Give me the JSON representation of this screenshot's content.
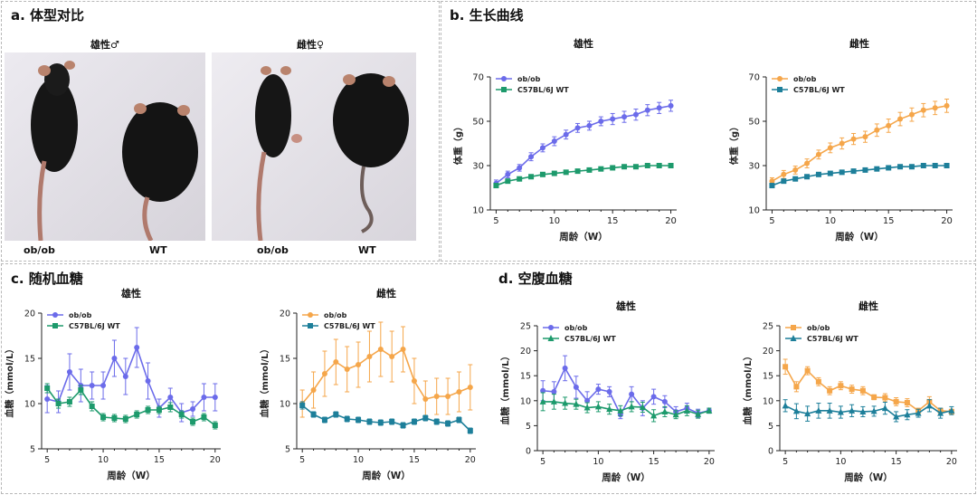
{
  "panels": {
    "a": {
      "title": "a. 体型对比",
      "male_label": "雄性♂",
      "female_label": "雌性♀",
      "photo_left_labels": [
        "ob/ob",
        "WT"
      ],
      "photo_right_labels": [
        "ob/ob",
        "WT"
      ]
    },
    "b": {
      "title": "b. 生长曲线"
    },
    "c": {
      "title": "c. 随机血糖"
    },
    "d": {
      "title": "d. 空腹血糖"
    }
  },
  "colors": {
    "male_obob": "#6b6bea",
    "wt_male": "#1d9a6c",
    "female_obob": "#f5a64a",
    "wt_female": "#1d7f9a"
  },
  "chart_data": [
    {
      "id": "b-male",
      "type": "line",
      "title": "雄性",
      "xlabel": "周龄（W）",
      "ylabel": "体重（g）",
      "xlim": [
        4.5,
        20.5
      ],
      "ylim": [
        10,
        70
      ],
      "xticks": [
        5,
        10,
        15,
        20
      ],
      "yticks": [
        10,
        30,
        50,
        70
      ],
      "legend": "top-left",
      "series": [
        {
          "name": "ob/ob",
          "marker": "circle",
          "color": "#6b6bea",
          "x": [
            5,
            6,
            7,
            8,
            9,
            10,
            11,
            12,
            13,
            14,
            15,
            16,
            17,
            18,
            19,
            20
          ],
          "y": [
            22,
            26,
            29,
            34,
            38,
            41,
            44,
            47,
            48,
            50,
            51,
            52,
            53,
            55,
            56,
            57
          ],
          "err": [
            1.5,
            1.5,
            1.5,
            1.8,
            1.8,
            2,
            2,
            2,
            2,
            2,
            2.5,
            2.5,
            2.5,
            2.5,
            2.5,
            2.5
          ]
        },
        {
          "name": "C57BL/6J WT",
          "marker": "square",
          "color": "#1d9a6c",
          "x": [
            5,
            6,
            7,
            8,
            9,
            10,
            11,
            12,
            13,
            14,
            15,
            16,
            17,
            18,
            19,
            20
          ],
          "y": [
            21,
            23,
            24,
            25,
            26,
            26.5,
            27,
            27.5,
            28,
            28.5,
            29,
            29.5,
            29.5,
            30,
            30,
            30
          ],
          "err": [
            0.8,
            0.8,
            0.8,
            0.8,
            0.8,
            0.8,
            0.8,
            0.8,
            0.8,
            0.8,
            0.8,
            0.8,
            0.8,
            0.8,
            0.8,
            0.8
          ]
        }
      ]
    },
    {
      "id": "b-female",
      "type": "line",
      "title": "雌性",
      "xlabel": "周龄（W）",
      "ylabel": "体重（g）",
      "xlim": [
        4.5,
        20.5
      ],
      "ylim": [
        10,
        70
      ],
      "xticks": [
        5,
        10,
        15,
        20
      ],
      "yticks": [
        10,
        30,
        50,
        70
      ],
      "legend": "top-left",
      "series": [
        {
          "name": "ob/ob",
          "marker": "circle",
          "color": "#f5a64a",
          "x": [
            5,
            6,
            7,
            8,
            9,
            10,
            11,
            12,
            13,
            14,
            15,
            16,
            17,
            18,
            19,
            20
          ],
          "y": [
            23,
            26,
            28,
            31,
            35,
            38,
            40,
            42,
            43,
            46,
            48,
            51,
            53,
            55,
            56,
            57
          ],
          "err": [
            1.5,
            1.8,
            1.8,
            2,
            2,
            2.2,
            2.5,
            2.5,
            2.5,
            2.8,
            3,
            3,
            3,
            3,
            3,
            3
          ]
        },
        {
          "name": "C57BL/6J WT",
          "marker": "square",
          "color": "#1d7f9a",
          "x": [
            5,
            6,
            7,
            8,
            9,
            10,
            11,
            12,
            13,
            14,
            15,
            16,
            17,
            18,
            19,
            20
          ],
          "y": [
            21,
            23,
            24,
            25,
            26,
            26.5,
            27,
            27.5,
            28,
            28.5,
            29,
            29.5,
            29.5,
            30,
            30,
            30
          ],
          "err": [
            0.8,
            0.8,
            0.8,
            0.8,
            0.8,
            0.8,
            0.8,
            0.8,
            0.8,
            0.8,
            0.8,
            0.8,
            0.8,
            0.8,
            0.8,
            0.8
          ]
        }
      ]
    },
    {
      "id": "c-male",
      "type": "line",
      "title": "雄性",
      "xlabel": "周龄（W）",
      "ylabel": "血糖（mmol/L）",
      "xlim": [
        4.5,
        20.5
      ],
      "ylim": [
        5,
        20
      ],
      "xticks": [
        5,
        10,
        15,
        20
      ],
      "yticks": [
        5,
        10,
        15,
        20
      ],
      "legend": "top-left",
      "series": [
        {
          "name": "ob/ob",
          "marker": "circle",
          "color": "#6b6bea",
          "x": [
            5,
            6,
            7,
            8,
            9,
            10,
            11,
            12,
            13,
            14,
            15,
            16,
            17,
            18,
            19,
            20
          ],
          "y": [
            10.5,
            10.2,
            13.5,
            12,
            12,
            12,
            15,
            13,
            16.2,
            12.5,
            9.5,
            10.7,
            9,
            9.4,
            10.7,
            10.7
          ],
          "err": [
            1.5,
            1.2,
            2,
            1.8,
            1.5,
            1.5,
            2,
            2,
            2.2,
            2,
            1,
            1,
            1,
            0.8,
            1.5,
            1.5
          ]
        },
        {
          "name": "C57BL/6J WT",
          "marker": "square",
          "color": "#1d9a6c",
          "x": [
            5,
            6,
            7,
            8,
            9,
            10,
            11,
            12,
            13,
            14,
            15,
            16,
            17,
            18,
            19,
            20
          ],
          "y": [
            11.7,
            10,
            10.2,
            11.5,
            9.7,
            8.5,
            8.4,
            8.3,
            8.8,
            9.3,
            9.3,
            9.6,
            8.8,
            8,
            8.5,
            7.6
          ],
          "err": [
            0.5,
            0.5,
            0.5,
            0.5,
            0.5,
            0.4,
            0.4,
            0.4,
            0.4,
            0.4,
            0.4,
            0.5,
            0.4,
            0.4,
            0.4,
            0.4
          ]
        }
      ]
    },
    {
      "id": "c-female",
      "type": "line",
      "title": "雌性",
      "xlabel": "周龄（W）",
      "ylabel": "血糖（mmol/L）",
      "xlim": [
        4.5,
        20.5
      ],
      "ylim": [
        5,
        20
      ],
      "xticks": [
        5,
        10,
        15,
        20
      ],
      "yticks": [
        5,
        10,
        15,
        20
      ],
      "legend": "top-left",
      "series": [
        {
          "name": "ob/ob",
          "marker": "circle",
          "color": "#f5a64a",
          "x": [
            5,
            6,
            7,
            8,
            9,
            10,
            11,
            12,
            13,
            14,
            15,
            16,
            17,
            18,
            19,
            20
          ],
          "y": [
            10,
            11.5,
            13.3,
            14.6,
            13.8,
            14.3,
            15.2,
            16,
            15.2,
            16,
            12.5,
            10.5,
            10.8,
            10.8,
            11.3,
            11.8
          ],
          "err": [
            1.5,
            2,
            2.5,
            2.5,
            2.5,
            2.5,
            2.8,
            3,
            2.8,
            2.5,
            2.5,
            2,
            2,
            2,
            2.2,
            2.5
          ]
        },
        {
          "name": "C57BL/6J WT",
          "marker": "square",
          "color": "#1d7f9a",
          "x": [
            5,
            6,
            7,
            8,
            9,
            10,
            11,
            12,
            13,
            14,
            15,
            16,
            17,
            18,
            19,
            20
          ],
          "y": [
            9.8,
            8.8,
            8.2,
            8.8,
            8.3,
            8.2,
            8,
            7.9,
            8,
            7.6,
            8,
            8.4,
            8,
            7.8,
            8.2,
            7
          ],
          "err": [
            0.4,
            0.3,
            0.3,
            0.3,
            0.3,
            0.3,
            0.3,
            0.3,
            0.3,
            0.3,
            0.3,
            0.3,
            0.3,
            0.3,
            0.3,
            0.3
          ]
        }
      ]
    },
    {
      "id": "d-male",
      "type": "line",
      "title": "雄性",
      "xlabel": "周龄（W）",
      "ylabel": "血糖（mmol/L）",
      "xlim": [
        4.5,
        20.5
      ],
      "ylim": [
        0,
        25
      ],
      "xticks": [
        5,
        10,
        15,
        20
      ],
      "yticks": [
        0,
        5,
        10,
        15,
        20,
        25
      ],
      "legend": "top-left",
      "series": [
        {
          "name": "ob/ob",
          "marker": "circle",
          "color": "#6b6bea",
          "x": [
            5,
            6,
            7,
            8,
            9,
            10,
            11,
            12,
            13,
            14,
            15,
            16,
            17,
            18,
            19,
            20
          ],
          "y": [
            12,
            11.8,
            16.5,
            12.7,
            10,
            12.3,
            11.8,
            7.2,
            11.3,
            8.5,
            10.8,
            9.8,
            7.8,
            8.5,
            7.5,
            8
          ],
          "err": [
            2,
            2,
            2.5,
            2.2,
            1.8,
            1,
            1,
            0.8,
            1.5,
            1.5,
            1.5,
            1.2,
            1,
            1,
            0.8,
            0.5
          ]
        },
        {
          "name": "C57BL/6J WT",
          "marker": "triangle",
          "color": "#1d9a6c",
          "x": [
            5,
            6,
            7,
            8,
            9,
            10,
            11,
            12,
            13,
            14,
            15,
            16,
            17,
            18,
            19,
            20
          ],
          "y": [
            9.8,
            9.8,
            9.5,
            9.3,
            8.6,
            8.8,
            8.3,
            8,
            8.8,
            8.7,
            7,
            7.8,
            7.2,
            8,
            7.3,
            8
          ],
          "err": [
            1.8,
            1.5,
            1.2,
            1,
            1,
            1,
            1,
            1,
            1,
            1,
            1.2,
            1,
            0.8,
            1,
            0.8,
            0.5
          ]
        }
      ]
    },
    {
      "id": "d-female",
      "type": "line",
      "title": "雌性",
      "xlabel": "周龄（W）",
      "ylabel": "血糖（mmol/L）",
      "xlim": [
        4.5,
        20.5
      ],
      "ylim": [
        0,
        25
      ],
      "xticks": [
        5,
        10,
        15,
        20
      ],
      "yticks": [
        0,
        5,
        10,
        15,
        20,
        25
      ],
      "legend": "top-left",
      "series": [
        {
          "name": "ob/ob",
          "marker": "square",
          "color": "#f5a64a",
          "x": [
            5,
            6,
            7,
            8,
            9,
            10,
            11,
            12,
            13,
            14,
            15,
            16,
            17,
            18,
            19,
            20
          ],
          "y": [
            16.8,
            12.8,
            16,
            13.8,
            12,
            13,
            12.3,
            12,
            10.7,
            10.6,
            9.8,
            9.6,
            8,
            9.8,
            8,
            7.8
          ],
          "err": [
            1.5,
            1,
            0.8,
            0.8,
            0.8,
            0.8,
            0.8,
            0.8,
            0.5,
            0.8,
            0.8,
            0.8,
            0.5,
            1,
            0.5,
            0.5
          ]
        },
        {
          "name": "C57BL/6J WT",
          "marker": "triangle",
          "color": "#1d7f9a",
          "x": [
            5,
            6,
            7,
            8,
            9,
            10,
            11,
            12,
            13,
            14,
            15,
            16,
            17,
            18,
            19,
            20
          ],
          "y": [
            9,
            7.9,
            7.4,
            8,
            8,
            7.7,
            8,
            7.8,
            7.9,
            8.5,
            6.8,
            7.2,
            7.5,
            9,
            7.5,
            8
          ],
          "err": [
            1.2,
            1.5,
            1.5,
            1.5,
            1.5,
            1.2,
            1.2,
            1,
            1,
            1.2,
            1,
            1,
            0.8,
            1.2,
            1,
            0.8
          ]
        }
      ]
    }
  ]
}
